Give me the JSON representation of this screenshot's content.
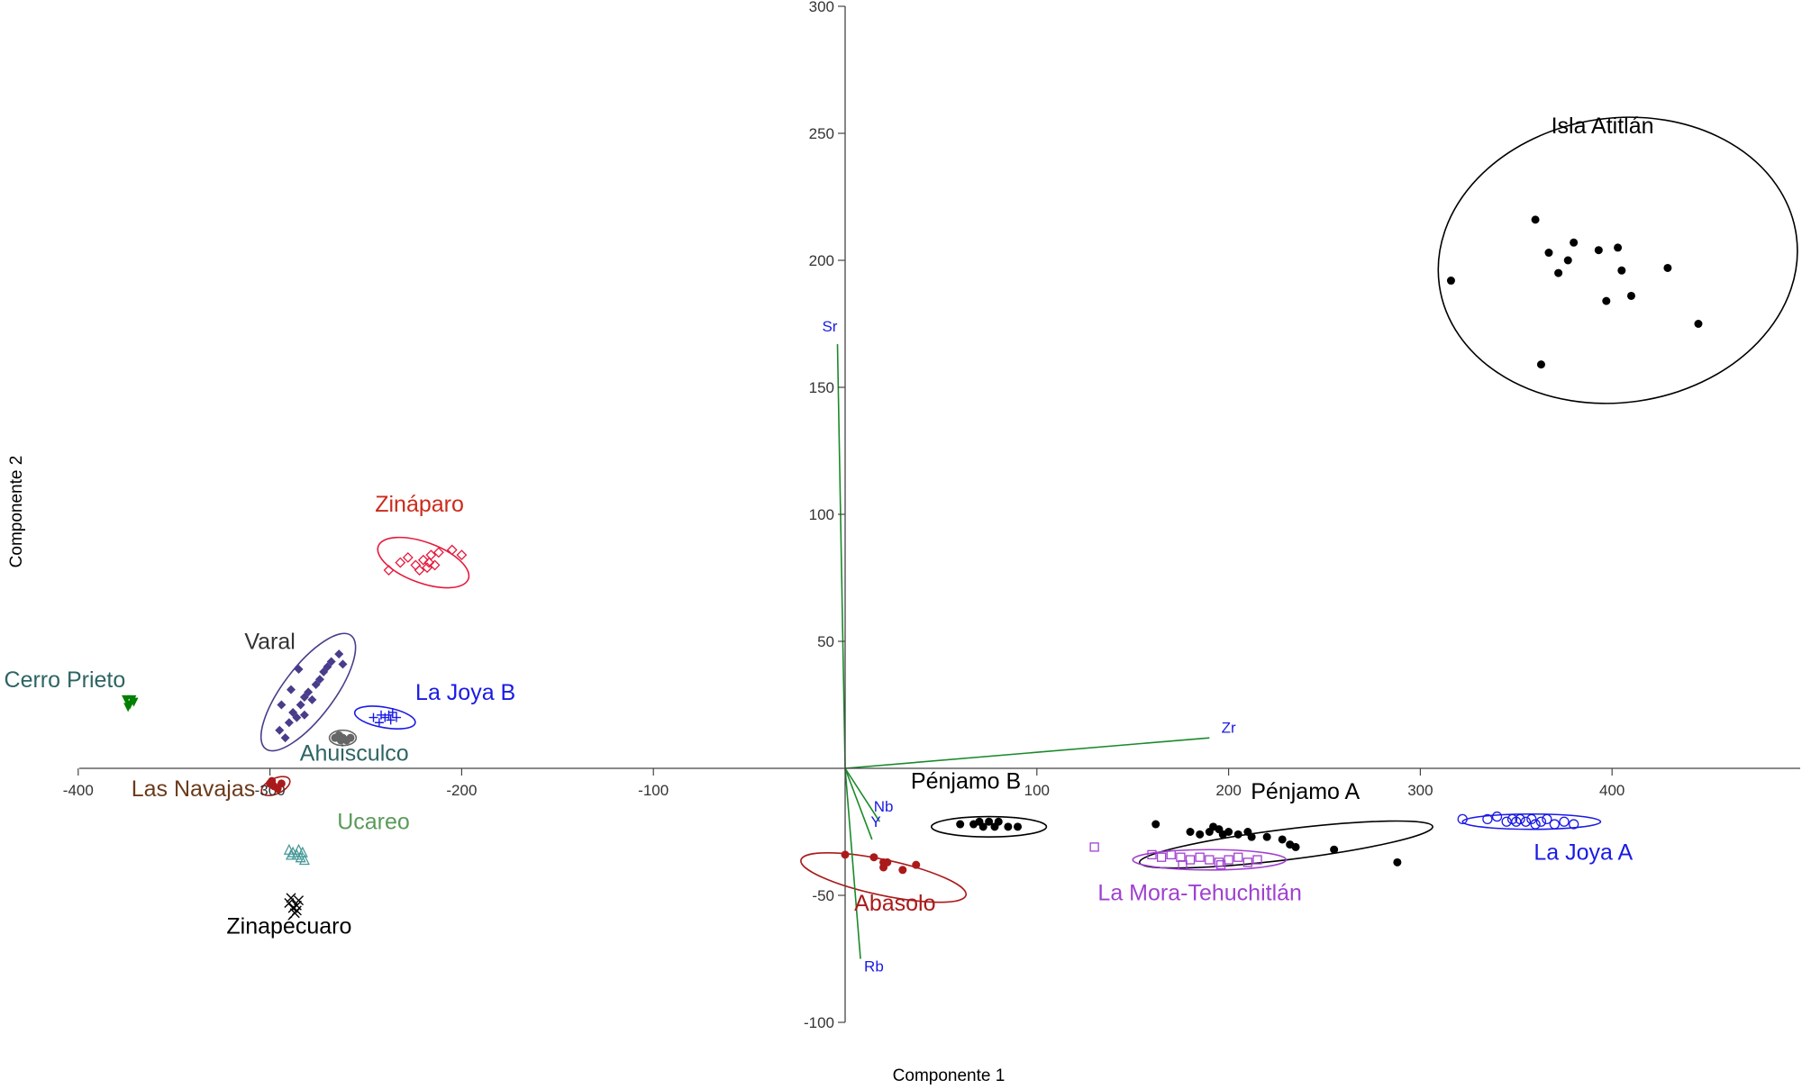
{
  "chart_data": {
    "type": "scatter",
    "xlabel": "Componente 1",
    "ylabel": "Componente 2",
    "xlim": [
      -400,
      500
    ],
    "ylim": [
      -100,
      300
    ],
    "xticks": [
      -400,
      -300,
      -200,
      -100,
      100,
      200,
      300,
      400
    ],
    "yticks": [
      -100,
      -50,
      50,
      100,
      150,
      200,
      250,
      300
    ],
    "grid": false,
    "groups": [
      {
        "name": "Isla Atitlán",
        "color": "#000000",
        "marker": "dot",
        "ellipse": {
          "cx": 403,
          "cy": 200,
          "rx": 94,
          "ry": 56,
          "angle": -8
        },
        "label_at": [
          395,
          250
        ],
        "points": [
          [
            316,
            192
          ],
          [
            360,
            216
          ],
          [
            367,
            203
          ],
          [
            372,
            195
          ],
          [
            377,
            200
          ],
          [
            380,
            207
          ],
          [
            393,
            204
          ],
          [
            397,
            184
          ],
          [
            403,
            205
          ],
          [
            405,
            196
          ],
          [
            410,
            186
          ],
          [
            429,
            197
          ],
          [
            445,
            175
          ],
          [
            363,
            159
          ]
        ]
      },
      {
        "name": "Zináparo",
        "color": "#e6193c",
        "labelColor": "#cc2a1a",
        "marker": "diamond-open",
        "ellipse": {
          "cx": -220,
          "cy": 81,
          "rx": 25,
          "ry": 8,
          "angle": 20
        },
        "label_at": [
          -222,
          101
        ],
        "points": [
          [
            -238,
            78
          ],
          [
            -232,
            81
          ],
          [
            -228,
            83
          ],
          [
            -224,
            80
          ],
          [
            -222,
            78
          ],
          [
            -220,
            82
          ],
          [
            -218,
            79
          ],
          [
            -217,
            81
          ],
          [
            -216,
            84
          ],
          [
            -214,
            80
          ],
          [
            -205,
            86
          ],
          [
            -200,
            84
          ],
          [
            -212,
            85
          ]
        ]
      },
      {
        "name": "Varal",
        "color": "#483d8b",
        "labelColor": "#333333",
        "marker": "diamond",
        "ellipse": {
          "cx": -280,
          "cy": 30,
          "rx": 37,
          "ry": 10,
          "angle": -53
        },
        "label_at": [
          -300,
          47
        ],
        "points": [
          [
            -295,
            15
          ],
          [
            -292,
            12
          ],
          [
            -290,
            18
          ],
          [
            -288,
            22
          ],
          [
            -286,
            20
          ],
          [
            -284,
            25
          ],
          [
            -282,
            28
          ],
          [
            -280,
            30
          ],
          [
            -278,
            27
          ],
          [
            -276,
            33
          ],
          [
            -274,
            35
          ],
          [
            -272,
            38
          ],
          [
            -270,
            40
          ],
          [
            -268,
            42
          ],
          [
            -264,
            45
          ],
          [
            -262,
            41
          ],
          [
            -285,
            39
          ],
          [
            -289,
            31
          ],
          [
            -282,
            21
          ],
          [
            -294,
            25
          ]
        ]
      },
      {
        "name": "Cerro Prieto",
        "color": "#008000",
        "labelColor": "#2e6464",
        "marker": "triangle",
        "label_at": [
          -407,
          32
        ],
        "points": [
          [
            -375,
            27
          ],
          [
            -373,
            25
          ],
          [
            -372,
            27
          ],
          [
            -374,
            24
          ],
          [
            -371,
            26
          ]
        ]
      },
      {
        "name": "La Joya B",
        "color": "#1a1ae6",
        "marker": "plus",
        "ellipse": {
          "cx": -240,
          "cy": 20,
          "rx": 16,
          "ry": 4,
          "angle": 10
        },
        "label_at": [
          -198,
          27
        ],
        "points": [
          [
            -246,
            20
          ],
          [
            -242,
            21
          ],
          [
            -240,
            20
          ],
          [
            -238,
            21
          ],
          [
            -236,
            22
          ],
          [
            -234,
            20
          ],
          [
            -243,
            18
          ],
          [
            -237,
            19
          ]
        ]
      },
      {
        "name": "Ahuisculco",
        "color": "#666666",
        "labelColor": "#2e6464",
        "marker": "dot",
        "ellipse": {
          "cx": -262,
          "cy": 12,
          "rx": 7,
          "ry": 3,
          "angle": 0
        },
        "label_at": [
          -256,
          3
        ],
        "points": [
          [
            -266,
            12
          ],
          [
            -264,
            13
          ],
          [
            -262,
            12
          ],
          [
            -260,
            11
          ],
          [
            -258,
            12
          ],
          [
            -263,
            11
          ]
        ]
      },
      {
        "name": "Las Navajas",
        "color": "#aa1a1a",
        "labelColor": "#6b3a1a",
        "marker": "dot",
        "ellipse": {
          "cx": -297,
          "cy": -7,
          "rx": 8,
          "ry": 3,
          "angle": -25
        },
        "label_at": [
          -340,
          -11
        ],
        "points": [
          [
            -300,
            -6
          ],
          [
            -298,
            -7
          ],
          [
            -296,
            -8
          ],
          [
            -294,
            -6
          ],
          [
            -299,
            -5
          ]
        ]
      },
      {
        "name": "Ucareo",
        "color": "#4a9a9a",
        "labelColor": "#5a9a5a",
        "marker": "triangle-open",
        "label_at": [
          -246,
          -24
        ],
        "points": [
          [
            -290,
            -32
          ],
          [
            -288,
            -33
          ],
          [
            -286,
            -34
          ],
          [
            -284,
            -35
          ],
          [
            -282,
            -36
          ],
          [
            -285,
            -32
          ],
          [
            -289,
            -34
          ],
          [
            -283,
            -33
          ]
        ]
      },
      {
        "name": "Zinapécuaro",
        "color": "#000000",
        "marker": "cross",
        "label_at": [
          -290,
          -65
        ],
        "points": [
          [
            -290,
            -53
          ],
          [
            -288,
            -55
          ],
          [
            -286,
            -54
          ],
          [
            -285,
            -52
          ],
          [
            -287,
            -57
          ],
          [
            -289,
            -51
          ],
          [
            -286,
            -56
          ]
        ]
      },
      {
        "name": "Pénjamo B",
        "color": "#000000",
        "marker": "dot",
        "ellipse": {
          "cx": 75,
          "cy": -23,
          "rx": 30,
          "ry": 4,
          "angle": 0
        },
        "label_at": [
          63,
          -8
        ],
        "points": [
          [
            60,
            -22
          ],
          [
            67,
            -22
          ],
          [
            70,
            -21
          ],
          [
            72,
            -23
          ],
          [
            75,
            -21
          ],
          [
            78,
            -23
          ],
          [
            80,
            -21
          ],
          [
            85,
            -23
          ],
          [
            90,
            -23
          ]
        ]
      },
      {
        "name": "Pénjamo A",
        "color": "#000000",
        "marker": "dot",
        "ellipse": {
          "cx": 230,
          "cy": -30,
          "rx": 77,
          "ry": 6,
          "angle": -7
        },
        "label_at": [
          240,
          -12
        ],
        "points": [
          [
            162,
            -22
          ],
          [
            180,
            -25
          ],
          [
            185,
            -26
          ],
          [
            190,
            -25
          ],
          [
            192,
            -23
          ],
          [
            195,
            -24
          ],
          [
            197,
            -26
          ],
          [
            200,
            -25
          ],
          [
            205,
            -26
          ],
          [
            210,
            -25
          ],
          [
            212,
            -27
          ],
          [
            220,
            -27
          ],
          [
            228,
            -28
          ],
          [
            232,
            -30
          ],
          [
            235,
            -31
          ],
          [
            255,
            -32
          ],
          [
            288,
            -37
          ]
        ]
      },
      {
        "name": "La Mora-Tehuchitlán",
        "color": "#a040d0",
        "labelColor": "#a040d0",
        "marker": "square-open",
        "ellipse": {
          "cx": 190,
          "cy": -36,
          "rx": 40,
          "ry": 4,
          "angle": 0
        },
        "label_at": [
          185,
          -52
        ],
        "points": [
          [
            130,
            -31
          ],
          [
            160,
            -34
          ],
          [
            165,
            -35
          ],
          [
            170,
            -34
          ],
          [
            175,
            -35
          ],
          [
            180,
            -36
          ],
          [
            185,
            -35
          ],
          [
            190,
            -36
          ],
          [
            195,
            -37
          ],
          [
            200,
            -36
          ],
          [
            205,
            -35
          ],
          [
            210,
            -37
          ],
          [
            215,
            -36
          ],
          [
            176,
            -38
          ],
          [
            196,
            -38
          ]
        ]
      },
      {
        "name": "La Joya A",
        "color": "#1a1ae6",
        "marker": "circle-open",
        "ellipse": {
          "cx": 358,
          "cy": -21,
          "rx": 36,
          "ry": 3,
          "angle": 0
        },
        "label_at": [
          385,
          -36
        ],
        "points": [
          [
            322,
            -20
          ],
          [
            335,
            -20
          ],
          [
            340,
            -19
          ],
          [
            345,
            -21
          ],
          [
            348,
            -20
          ],
          [
            350,
            -21
          ],
          [
            352,
            -20
          ],
          [
            355,
            -21
          ],
          [
            358,
            -20
          ],
          [
            360,
            -22
          ],
          [
            363,
            -21
          ],
          [
            366,
            -20
          ],
          [
            370,
            -22
          ],
          [
            375,
            -21
          ],
          [
            380,
            -22
          ]
        ]
      },
      {
        "name": "Abasolo",
        "color": "#aa1a1a",
        "labelColor": "#aa1a1a",
        "marker": "dot",
        "ellipse": {
          "cx": 20,
          "cy": -43,
          "rx": 44,
          "ry": 7,
          "angle": 12
        },
        "label_at": [
          26,
          -56
        ],
        "points": [
          [
            0,
            -34
          ],
          [
            15,
            -35
          ],
          [
            20,
            -37
          ],
          [
            20,
            -39
          ],
          [
            30,
            -40
          ],
          [
            37,
            -38
          ],
          [
            22,
            -37
          ]
        ]
      }
    ],
    "loadings": [
      {
        "name": "Sr",
        "tip": [
          -4,
          167
        ],
        "label_at": [
          -8,
          172
        ]
      },
      {
        "name": "Zr",
        "tip": [
          190,
          12
        ],
        "label_at": [
          200,
          14
        ]
      },
      {
        "name": "Nb",
        "tip": [
          18,
          -21
        ],
        "label_at": [
          20,
          -17
        ]
      },
      {
        "name": "Y",
        "tip": [
          14,
          -28
        ],
        "label_at": [
          16,
          -23
        ]
      },
      {
        "name": "Rb",
        "tip": [
          8,
          -75
        ],
        "label_at": [
          15,
          -80
        ]
      }
    ]
  }
}
